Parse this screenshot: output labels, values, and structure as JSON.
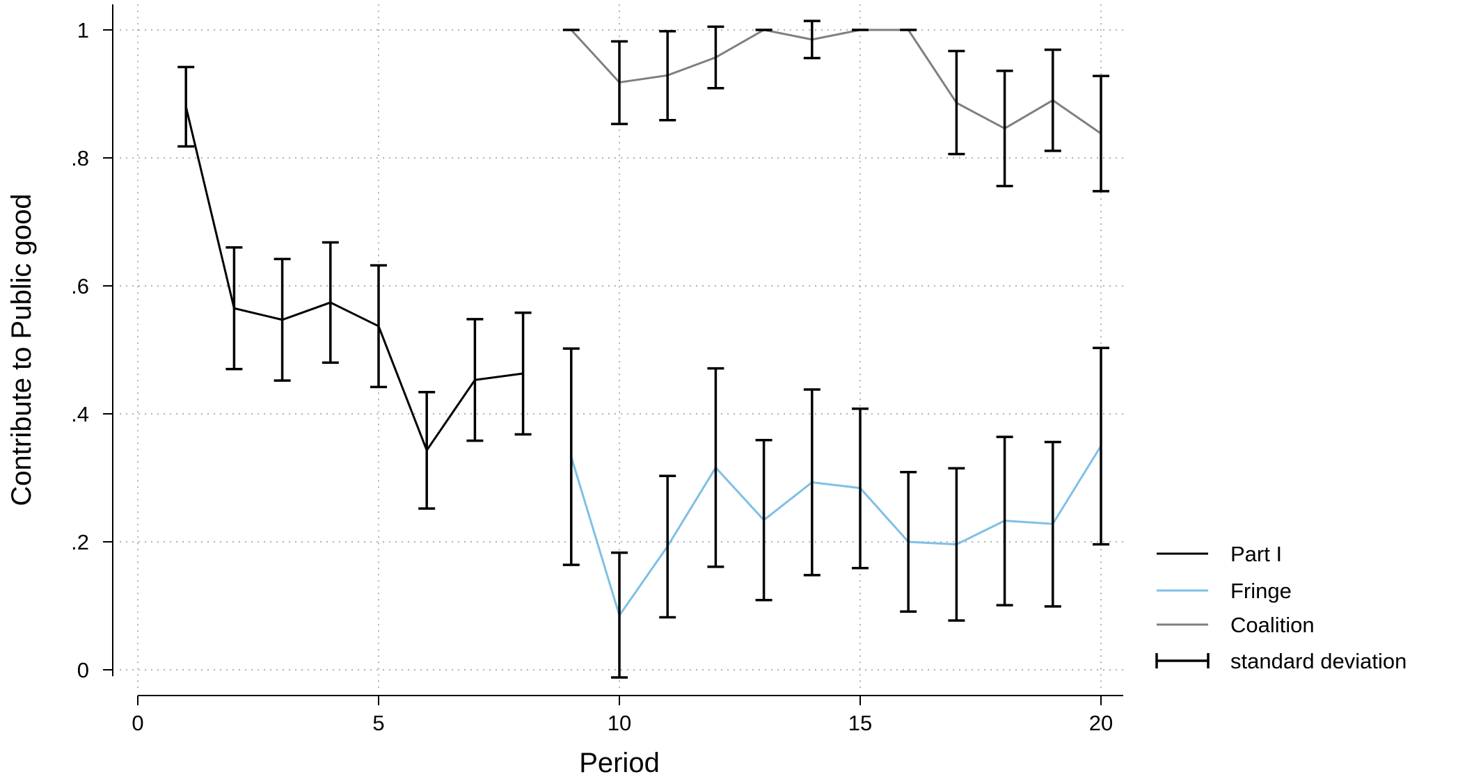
{
  "chart_data": {
    "type": "line",
    "xlabel": "Period",
    "ylabel": "Contribute to Public good",
    "xlim": [
      0,
      20
    ],
    "ylim": [
      0,
      1
    ],
    "xticks": [
      0,
      5,
      10,
      15,
      20
    ],
    "xtick_labels": [
      "0",
      "5",
      "10",
      "15",
      "20"
    ],
    "yticks": [
      0,
      0.2,
      0.4,
      0.6,
      0.8,
      1
    ],
    "ytick_labels": [
      "0",
      ".2",
      ".4",
      ".6",
      ".8",
      "1"
    ],
    "grid": true,
    "legend_position": "bottom-right",
    "series": [
      {
        "name": "Part I",
        "color": "#000000",
        "x": [
          1,
          2,
          3,
          4,
          5,
          6,
          7,
          8
        ],
        "y": [
          0.88,
          0.565,
          0.547,
          0.574,
          0.537,
          0.343,
          0.453,
          0.463
        ],
        "err_low": [
          0.818,
          0.47,
          0.452,
          0.48,
          0.442,
          0.252,
          0.358,
          0.368
        ],
        "err_high": [
          0.942,
          0.66,
          0.642,
          0.668,
          0.632,
          0.434,
          0.548,
          0.558
        ]
      },
      {
        "name": "Fringe",
        "color": "#7fbfe6",
        "x": [
          9,
          10,
          11,
          12,
          13,
          14,
          15,
          16,
          17,
          18,
          19,
          20
        ],
        "y": [
          0.333,
          0.085,
          0.193,
          0.316,
          0.234,
          0.293,
          0.284,
          0.2,
          0.196,
          0.233,
          0.228,
          0.35
        ],
        "err_low": [
          0.164,
          -0.012,
          0.082,
          0.161,
          0.109,
          0.148,
          0.159,
          0.091,
          0.077,
          0.101,
          0.099,
          0.196
        ],
        "err_high": [
          0.502,
          0.183,
          0.303,
          0.471,
          0.359,
          0.438,
          0.408,
          0.309,
          0.315,
          0.364,
          0.356,
          0.503
        ]
      },
      {
        "name": "Coalition",
        "color": "#7f7f7f",
        "x": [
          9,
          10,
          11,
          12,
          13,
          14,
          15,
          16,
          17,
          18,
          19,
          20
        ],
        "y": [
          1,
          0.918,
          0.929,
          0.957,
          1,
          0.985,
          1,
          1,
          0.886,
          0.846,
          0.89,
          0.838
        ],
        "err_low": [
          null,
          0.853,
          0.859,
          0.909,
          null,
          0.956,
          null,
          null,
          0.806,
          0.756,
          0.811,
          0.748
        ],
        "err_high": [
          1,
          0.982,
          0.998,
          1.005,
          1,
          1.014,
          1,
          1,
          0.967,
          0.936,
          0.969,
          0.928
        ]
      }
    ],
    "legend": [
      {
        "label": "Part I",
        "color": "#000000",
        "kind": "line"
      },
      {
        "label": "Fringe",
        "color": "#7fbfe6",
        "kind": "line"
      },
      {
        "label": "Coalition",
        "color": "#7f7f7f",
        "kind": "line"
      },
      {
        "label": "standard deviation",
        "color": "#000000",
        "kind": "errorbar"
      }
    ]
  }
}
